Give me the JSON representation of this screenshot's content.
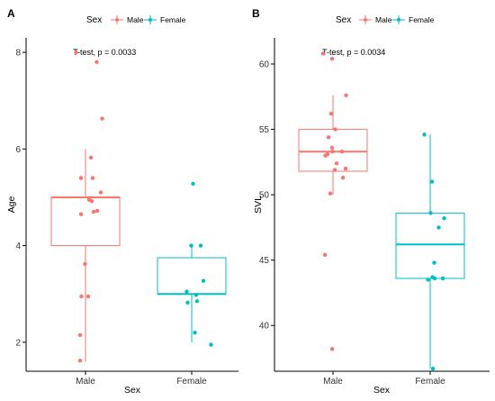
{
  "legend": {
    "title": "Sex",
    "items": [
      {
        "label": "Male",
        "color": "#F8766D"
      },
      {
        "label": "Female",
        "color": "#00BFC4"
      }
    ]
  },
  "chart_data": [
    {
      "type": "boxplot",
      "panel": "A",
      "xlabel": "Sex",
      "ylabel": "Age",
      "categories": [
        "Male",
        "Female"
      ],
      "ylim": [
        1.4,
        8.3
      ],
      "yticks": [
        2,
        4,
        6,
        8
      ],
      "annotation": "T-test, p = 0.0033",
      "boxes": [
        {
          "category": "Male",
          "color": "#F8766D",
          "whisker_low": 1.6,
          "q1": 4.0,
          "median": 5.0,
          "q3": 5.0,
          "whisker_high": 6.0
        },
        {
          "category": "Female",
          "color": "#00BFC4",
          "whisker_low": 2.0,
          "q1": 3.0,
          "median": 3.0,
          "q3": 3.75,
          "whisker_high": 4.0
        }
      ],
      "points": [
        {
          "category": "Male",
          "jitter": -0.21,
          "y": 8.0
        },
        {
          "category": "Male",
          "jitter": 0.25,
          "y": 7.8
        },
        {
          "category": "Male",
          "jitter": 0.37,
          "y": 6.63
        },
        {
          "category": "Male",
          "jitter": 0.12,
          "y": 5.82
        },
        {
          "category": "Male",
          "jitter": -0.1,
          "y": 5.4
        },
        {
          "category": "Male",
          "jitter": 0.16,
          "y": 5.4
        },
        {
          "category": "Male",
          "jitter": 0.34,
          "y": 5.1
        },
        {
          "category": "Male",
          "jitter": 0.08,
          "y": 4.95
        },
        {
          "category": "Male",
          "jitter": 0.14,
          "y": 4.92
        },
        {
          "category": "Male",
          "jitter": -0.1,
          "y": 4.65
        },
        {
          "category": "Male",
          "jitter": 0.18,
          "y": 4.7
        },
        {
          "category": "Male",
          "jitter": 0.26,
          "y": 4.72
        },
        {
          "category": "Male",
          "jitter": -0.01,
          "y": 3.62
        },
        {
          "category": "Male",
          "jitter": -0.09,
          "y": 2.95
        },
        {
          "category": "Male",
          "jitter": 0.06,
          "y": 2.95
        },
        {
          "category": "Male",
          "jitter": -0.12,
          "y": 2.15
        },
        {
          "category": "Male",
          "jitter": -0.12,
          "y": 1.62
        },
        {
          "category": "Female",
          "jitter": 0.03,
          "y": 5.28
        },
        {
          "category": "Female",
          "jitter": -0.01,
          "y": 4.0
        },
        {
          "category": "Female",
          "jitter": 0.2,
          "y": 4.0
        },
        {
          "category": "Female",
          "jitter": 0.26,
          "y": 3.27
        },
        {
          "category": "Female",
          "jitter": -0.11,
          "y": 3.05
        },
        {
          "category": "Female",
          "jitter": 0.1,
          "y": 2.98
        },
        {
          "category": "Female",
          "jitter": -0.09,
          "y": 2.82
        },
        {
          "category": "Female",
          "jitter": 0.12,
          "y": 2.85
        },
        {
          "category": "Female",
          "jitter": 0.07,
          "y": 2.2
        },
        {
          "category": "Female",
          "jitter": 0.43,
          "y": 1.95
        }
      ]
    },
    {
      "type": "boxplot",
      "panel": "B",
      "xlabel": "Sex",
      "ylabel": "SVL",
      "categories": [
        "Male",
        "Female"
      ],
      "ylim": [
        36.5,
        62.0
      ],
      "yticks": [
        40,
        45,
        50,
        55,
        60
      ],
      "annotation": "T-test, p = 0.0034",
      "boxes": [
        {
          "category": "Male",
          "color": "#F8766D",
          "whisker_low": 50.0,
          "q1": 51.8,
          "median": 53.3,
          "q3": 55.0,
          "whisker_high": 57.6
        },
        {
          "category": "Female",
          "color": "#00BFC4",
          "whisker_low": 36.7,
          "q1": 43.6,
          "median": 46.2,
          "q3": 48.6,
          "whisker_high": 54.6
        }
      ],
      "points": [
        {
          "category": "Male",
          "jitter": -0.22,
          "y": 60.8
        },
        {
          "category": "Male",
          "jitter": -0.02,
          "y": 60.4
        },
        {
          "category": "Male",
          "jitter": 0.29,
          "y": 57.6
        },
        {
          "category": "Male",
          "jitter": -0.04,
          "y": 56.2
        },
        {
          "category": "Male",
          "jitter": 0.05,
          "y": 55.0
        },
        {
          "category": "Male",
          "jitter": -0.1,
          "y": 54.4
        },
        {
          "category": "Male",
          "jitter": -0.12,
          "y": 53.1
        },
        {
          "category": "Male",
          "jitter": -0.02,
          "y": 53.6
        },
        {
          "category": "Male",
          "jitter": -0.01,
          "y": 53.3
        },
        {
          "category": "Male",
          "jitter": 0.08,
          "y": 52.4
        },
        {
          "category": "Male",
          "jitter": 0.2,
          "y": 53.3
        },
        {
          "category": "Male",
          "jitter": -0.17,
          "y": 53.0
        },
        {
          "category": "Male",
          "jitter": 0.28,
          "y": 52.0
        },
        {
          "category": "Male",
          "jitter": 0.04,
          "y": 51.9
        },
        {
          "category": "Male",
          "jitter": 0.22,
          "y": 51.3
        },
        {
          "category": "Male",
          "jitter": -0.06,
          "y": 50.1
        },
        {
          "category": "Male",
          "jitter": -0.18,
          "y": 45.4
        },
        {
          "category": "Male",
          "jitter": -0.02,
          "y": 38.2
        },
        {
          "category": "Female",
          "jitter": -0.13,
          "y": 54.6
        },
        {
          "category": "Female",
          "jitter": 0.04,
          "y": 51.0
        },
        {
          "category": "Female",
          "jitter": 0.01,
          "y": 48.6
        },
        {
          "category": "Female",
          "jitter": 0.31,
          "y": 48.2
        },
        {
          "category": "Female",
          "jitter": 0.19,
          "y": 47.5
        },
        {
          "category": "Female",
          "jitter": 0.09,
          "y": 44.8
        },
        {
          "category": "Female",
          "jitter": 0.05,
          "y": 43.7
        },
        {
          "category": "Female",
          "jitter": -0.05,
          "y": 43.5
        },
        {
          "category": "Female",
          "jitter": 0.1,
          "y": 43.6
        },
        {
          "category": "Female",
          "jitter": 0.28,
          "y": 43.6
        },
        {
          "category": "Female",
          "jitter": 0.06,
          "y": 36.7
        }
      ]
    }
  ]
}
